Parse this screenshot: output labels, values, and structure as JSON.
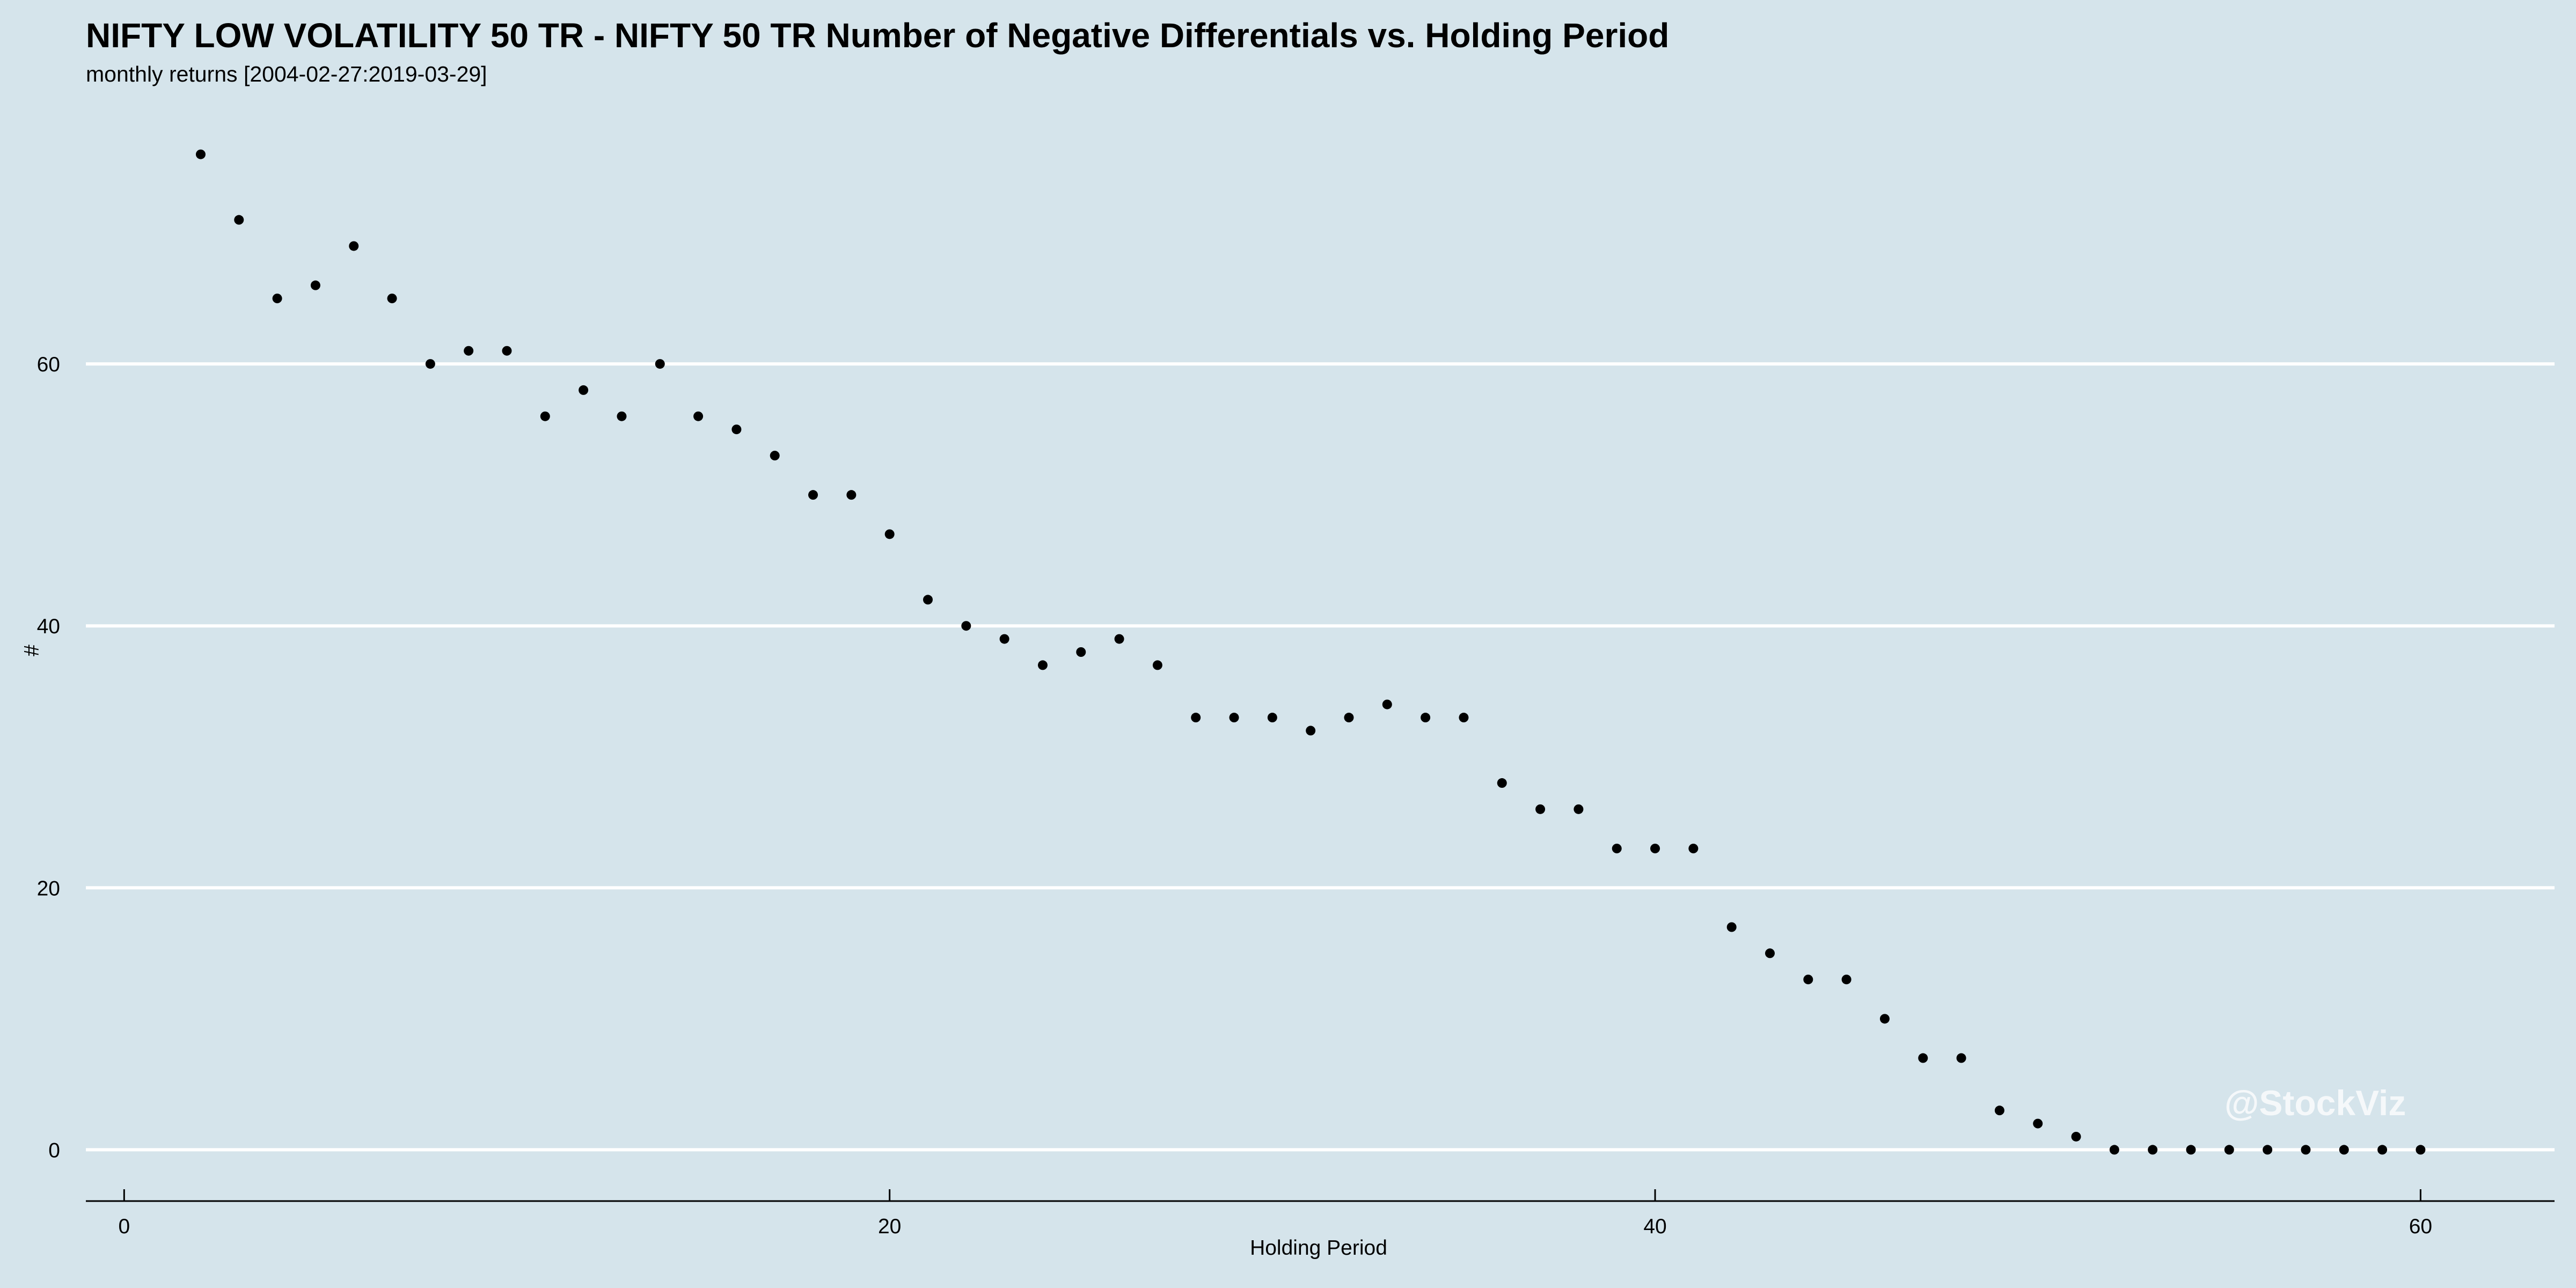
{
  "chart_data": {
    "type": "scatter",
    "title": "NIFTY LOW VOLATILITY 50 TR - NIFTY 50 TR Number of Negative Differentials vs. Holding Period",
    "subtitle": "monthly returns [2004-02-27:2019-03-29]",
    "xlabel": "Holding Period",
    "ylabel": "#",
    "xlim": [
      -1,
      63.5
    ],
    "ylim": [
      -4,
      80
    ],
    "x_ticks": [
      0,
      20,
      40,
      60
    ],
    "y_ticks": [
      0,
      20,
      40,
      60
    ],
    "grid": "horizontal major only",
    "legend": "none",
    "x": [
      2,
      3,
      4,
      5,
      6,
      7,
      8,
      9,
      10,
      11,
      12,
      13,
      14,
      15,
      16,
      17,
      18,
      19,
      20,
      21,
      22,
      23,
      24,
      25,
      26,
      27,
      28,
      29,
      30,
      31,
      32,
      33,
      34,
      35,
      36,
      37,
      38,
      39,
      40,
      41,
      42,
      43,
      44,
      45,
      46,
      47,
      48,
      49,
      50,
      51,
      52,
      53,
      54,
      55,
      56,
      57,
      58,
      59,
      60
    ],
    "y": [
      76,
      71,
      65,
      66,
      69,
      65,
      60,
      61,
      61,
      56,
      58,
      56,
      60,
      56,
      55,
      53,
      50,
      50,
      47,
      42,
      40,
      39,
      37,
      38,
      39,
      37,
      33,
      33,
      33,
      32,
      33,
      34,
      33,
      33,
      28,
      26,
      26,
      23,
      23,
      23,
      17,
      15,
      13,
      13,
      10,
      7,
      7,
      3,
      2,
      1,
      0,
      0,
      0,
      0,
      0,
      0,
      0,
      0,
      0
    ]
  },
  "watermark": "@StockViz",
  "colors": {
    "background": "#d5e4eb",
    "grid": "#ffffff",
    "points": "#000000"
  }
}
